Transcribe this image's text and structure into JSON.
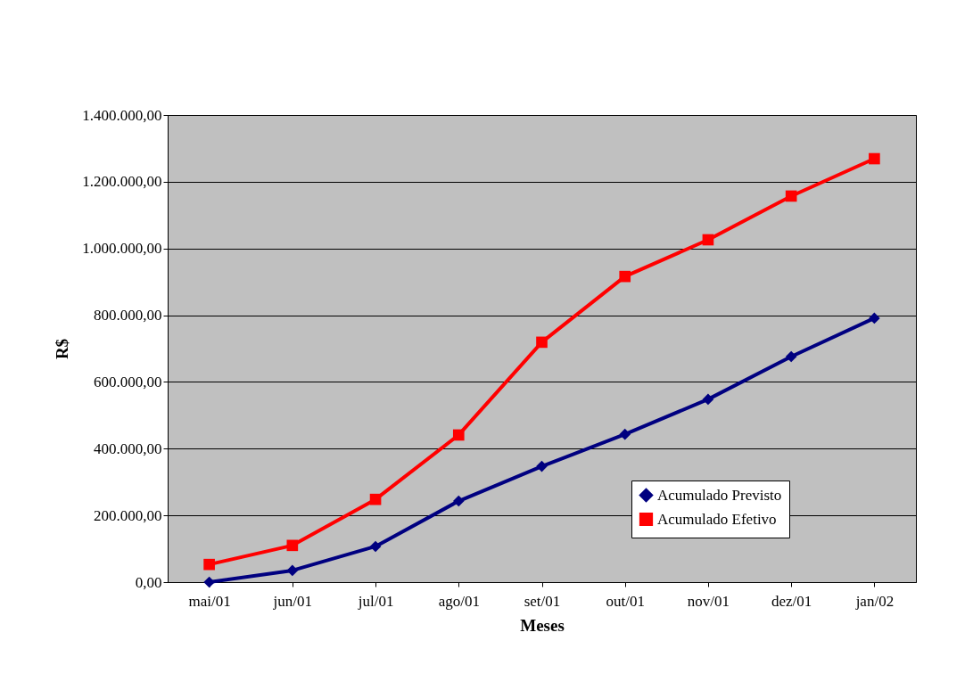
{
  "chart_data": {
    "type": "line",
    "xlabel": "Meses",
    "ylabel": "R$",
    "categories": [
      "mai/01",
      "jun/01",
      "jul/01",
      "ago/01",
      "set/01",
      "out/01",
      "nov/01",
      "dez/01",
      "jan/02"
    ],
    "series": [
      {
        "name": "Acumulado Previsto",
        "color": "#000080",
        "marker": "diamond",
        "values": [
          0,
          35000,
          107000,
          243000,
          347000,
          443000,
          548000,
          676000,
          791000
        ]
      },
      {
        "name": "Acumulado Efetivo",
        "color": "#ff0000",
        "marker": "square",
        "values": [
          53000,
          110000,
          248000,
          441000,
          719000,
          916000,
          1026000,
          1157000,
          1269000
        ]
      }
    ],
    "ylim": [
      0,
      1400000
    ],
    "yticks": [
      {
        "value": 0,
        "label": "0,00"
      },
      {
        "value": 200000,
        "label": "200.000,00"
      },
      {
        "value": 400000,
        "label": "400.000,00"
      },
      {
        "value": 600000,
        "label": "600.000,00"
      },
      {
        "value": 800000,
        "label": "800.000,00"
      },
      {
        "value": 1000000,
        "label": "1.000.000,00"
      },
      {
        "value": 1200000,
        "label": "1.200.000,00"
      },
      {
        "value": 1400000,
        "label": "1.400.000,00"
      }
    ],
    "grid": "y",
    "legend": "bottom right",
    "line_style": "solid"
  }
}
